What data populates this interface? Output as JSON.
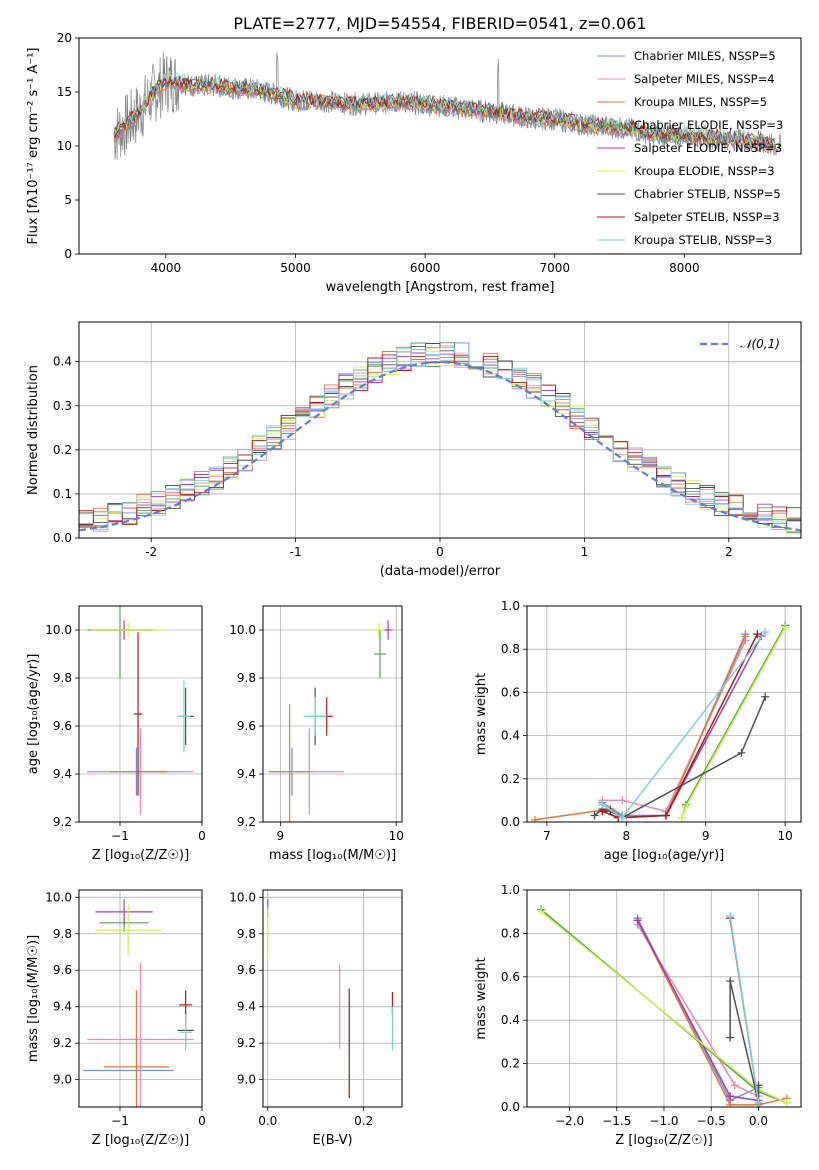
{
  "figure_title": "PLATE=2777, MJD=54554, FIBERID=0541, z=0.061",
  "colors": {
    "chab_miles": "#6d8fd6",
    "salp_miles": "#e889b9",
    "krou_miles": "#e07a32",
    "chab_elodie": "#5aa05a",
    "salp_elodie": "#a040b0",
    "krou_elodie": "#d2f04a",
    "chab_stelib": "#505050",
    "salp_stelib": "#b01818",
    "krou_stelib": "#80d0d8"
  },
  "chart_data": [
    {
      "id": "spectrum",
      "type": "line",
      "title": "PLATE=2777, MJD=54554, FIBERID=0541, z=0.061",
      "xlabel": "wavelength [Angstrom, rest frame]",
      "ylabel": "Flux [fλ10⁻¹⁷ erg cm⁻² s⁻¹ A⁻¹]",
      "xlim": [
        3330,
        8900
      ],
      "ylim": [
        0,
        20
      ],
      "xticks": [
        4000,
        5000,
        6000,
        7000,
        8000
      ],
      "yticks": [
        0,
        5,
        10,
        15,
        20
      ],
      "grid": false,
      "legend_position": "top-right",
      "legend": [
        "Chabrier MILES, NSSP=5",
        "Salpeter MILES, NSSP=4",
        "Kroupa MILES, NSSP=5",
        "Chabrier ELODIE, NSSP=3",
        "Salpeter ELODIE, NSSP=3",
        "Kroupa ELODIE, NSSP=3",
        "Chabrier STELIB, NSSP=5",
        "Salpeter STELIB, NSSP=3",
        "Kroupa STELIB, NSSP=3"
      ],
      "legend_colors": [
        "chab_miles",
        "salp_miles",
        "krou_miles",
        "chab_elodie",
        "salp_elodie",
        "krou_elodie",
        "chab_stelib",
        "salp_stelib",
        "krou_stelib"
      ],
      "continuum": [
        [
          3600,
          11.0
        ],
        [
          3700,
          12.0
        ],
        [
          3800,
          13.2
        ],
        [
          3900,
          14.8
        ],
        [
          4000,
          16.0
        ],
        [
          4100,
          15.9
        ],
        [
          4200,
          15.6
        ],
        [
          4300,
          15.6
        ],
        [
          4400,
          15.6
        ],
        [
          4500,
          15.4
        ],
        [
          4700,
          15.2
        ],
        [
          4900,
          14.6
        ],
        [
          5000,
          14.2
        ],
        [
          5200,
          14.2
        ],
        [
          5400,
          13.9
        ],
        [
          5600,
          13.9
        ],
        [
          5800,
          14.1
        ],
        [
          6000,
          13.9
        ],
        [
          6200,
          13.6
        ],
        [
          6400,
          13.3
        ],
        [
          6600,
          13.0
        ],
        [
          6800,
          12.6
        ],
        [
          7000,
          12.5
        ],
        [
          7200,
          12.0
        ],
        [
          7400,
          11.8
        ],
        [
          7600,
          11.5
        ],
        [
          7800,
          11.0
        ],
        [
          8000,
          11.0
        ],
        [
          8200,
          10.8
        ],
        [
          8400,
          10.6
        ],
        [
          8600,
          10.3
        ],
        [
          8700,
          10.0
        ]
      ]
    },
    {
      "id": "residuals",
      "type": "step",
      "xlabel": "(data-model)/error",
      "ylabel": "Normed distribution",
      "xlim": [
        -2.5,
        2.5
      ],
      "ylim": [
        0,
        0.49
      ],
      "xticks": [
        -2,
        -1,
        0,
        1,
        2
      ],
      "yticks": [
        0.0,
        0.1,
        0.2,
        0.3,
        0.4
      ],
      "grid": true,
      "legend": [
        "𝒩(0,1)"
      ],
      "legend_position": "top-right",
      "bin_width": 0.1
    },
    {
      "id": "age_vs_Z",
      "type": "errorbar",
      "xlabel": "Z [log₁₀(Z/Z☉)]",
      "ylabel": "age  [log₁₀(age/yr)]",
      "xlim": [
        -1.5,
        0.0
      ],
      "ylim": [
        9.2,
        10.1
      ],
      "xticks": [
        -1,
        0
      ],
      "xticklabels": [
        "−1",
        "0"
      ],
      "yticks": [
        9.2,
        9.4,
        9.6,
        9.8,
        10.0
      ],
      "grid": true,
      "points": [
        {
          "c": "chab_miles",
          "x": -0.8,
          "xe": 0.6,
          "y": 9.41,
          "ye": 0.1
        },
        {
          "c": "salp_miles",
          "x": -0.75,
          "xe": 0.65,
          "y": 9.41,
          "ye": 0.18
        },
        {
          "c": "krou_miles",
          "x": -0.78,
          "xe": 0.35,
          "y": 9.41,
          "ye": 0.1
        },
        {
          "c": "chab_elodie",
          "x": -1.0,
          "xe": 0.4,
          "y": 10.0,
          "ye": 0.2
        },
        {
          "c": "salp_elodie",
          "x": -0.95,
          "xe": 0.4,
          "y": 10.0,
          "ye": 0.04
        },
        {
          "c": "krou_elodie",
          "x": -0.9,
          "xe": 0.45,
          "y": 10.0,
          "ye": 0.03
        },
        {
          "c": "chab_stelib",
          "x": -0.2,
          "xe": 0.1,
          "y": 9.64,
          "ye": 0.12
        },
        {
          "c": "salp_stelib",
          "x": -0.78,
          "xe": 0.05,
          "y": 9.65,
          "ye": 0.34
        },
        {
          "c": "krou_stelib",
          "x": -0.22,
          "xe": 0.08,
          "y": 9.64,
          "ye": 0.15
        }
      ]
    },
    {
      "id": "age_vs_mass",
      "type": "errorbar",
      "xlabel": "mass [log₁₀(M/M☉)]",
      "ylabel": "",
      "xlim": [
        8.85,
        10.05
      ],
      "ylim": [
        9.2,
        10.1
      ],
      "xticks": [
        9,
        10
      ],
      "yticks": [
        9.2,
        9.4,
        9.6,
        9.8,
        10.0
      ],
      "grid": true,
      "points": [
        {
          "c": "chab_miles",
          "x": 9.1,
          "xe": 0.2,
          "y": 9.41,
          "ye": 0.1
        },
        {
          "c": "salp_miles",
          "x": 9.25,
          "xe": 0.3,
          "y": 9.41,
          "ye": 0.18
        },
        {
          "c": "krou_miles",
          "x": 9.08,
          "xe": 0.17,
          "y": 9.41,
          "ye": 0.28
        },
        {
          "c": "chab_elodie",
          "x": 9.86,
          "xe": 0.05,
          "y": 9.9,
          "ye": 0.1
        },
        {
          "c": "salp_elodie",
          "x": 9.93,
          "xe": 0.04,
          "y": 10.0,
          "ye": 0.04
        },
        {
          "c": "krou_elodie",
          "x": 9.85,
          "xe": 0.05,
          "y": 10.0,
          "ye": 0.03
        },
        {
          "c": "chab_stelib",
          "x": 9.3,
          "xe": 0.06,
          "y": 9.64,
          "ye": 0.12
        },
        {
          "c": "salp_stelib",
          "x": 9.4,
          "xe": 0.05,
          "y": 9.64,
          "ye": 0.08
        },
        {
          "c": "krou_stelib",
          "x": 9.3,
          "xe": 0.1,
          "y": 9.64,
          "ye": 0.08
        }
      ]
    },
    {
      "id": "massweight_vs_age",
      "type": "line",
      "xlabel": "age  [log₁₀(age/yr)]",
      "ylabel": "mass weight",
      "xlim": [
        6.75,
        10.2
      ],
      "ylim": [
        0.0,
        1.0
      ],
      "xticks": [
        7,
        8,
        9,
        10
      ],
      "yticks": [
        0.0,
        0.2,
        0.4,
        0.6,
        0.8,
        1.0
      ],
      "grid": true,
      "series": [
        {
          "c": "chab_miles",
          "x": [
            7.7,
            7.95,
            8.5,
            9.5
          ],
          "y": [
            0.09,
            0.03,
            0.03,
            0.87
          ]
        },
        {
          "c": "salp_miles",
          "x": [
            7.7,
            7.95,
            8.5,
            9.5
          ],
          "y": [
            0.1,
            0.1,
            0.05,
            0.84
          ]
        },
        {
          "c": "krou_miles",
          "x": [
            6.85,
            7.8,
            7.95,
            8.5,
            9.5
          ],
          "y": [
            0.01,
            0.06,
            0.02,
            0.03,
            0.86
          ]
        },
        {
          "c": "chab_elodie",
          "x": [
            8.7,
            8.75,
            10.0
          ],
          "y": [
            0.02,
            0.08,
            0.91
          ]
        },
        {
          "c": "salp_elodie",
          "x": [
            7.7,
            7.9,
            8.5,
            9.7
          ],
          "y": [
            0.05,
            0.02,
            0.03,
            0.86
          ]
        },
        {
          "c": "krou_elodie",
          "x": [
            8.7,
            8.75,
            10.0
          ],
          "y": [
            0.02,
            0.07,
            0.9
          ]
        },
        {
          "c": "chab_stelib",
          "x": [
            7.6,
            7.7,
            7.8,
            7.95,
            9.45,
            9.75
          ],
          "y": [
            0.03,
            0.06,
            0.05,
            0.02,
            0.32,
            0.58
          ]
        },
        {
          "c": "salp_stelib",
          "x": [
            7.7,
            7.9,
            8.5,
            9.65
          ],
          "y": [
            0.05,
            0.02,
            0.03,
            0.87
          ]
        },
        {
          "c": "krou_stelib",
          "x": [
            7.7,
            7.95,
            9.75
          ],
          "y": [
            0.08,
            0.02,
            0.88
          ]
        }
      ]
    },
    {
      "id": "mass_vs_Z",
      "type": "errorbar",
      "xlabel": "Z [log₁₀(Z/Z☉)]",
      "ylabel": "mass [log₁₀(M/M☉)]",
      "xlim": [
        -1.5,
        0.0
      ],
      "ylim": [
        8.85,
        10.04
      ],
      "xticks": [
        -1,
        0
      ],
      "xticklabels": [
        "−1",
        "0"
      ],
      "yticks": [
        9.0,
        9.2,
        9.4,
        9.6,
        9.8,
        10.0
      ],
      "grid": true,
      "points": [
        {
          "c": "chab_miles",
          "x": -0.9,
          "xe": 0.55,
          "y": 9.05,
          "ye": 0.0
        },
        {
          "c": "salp_miles",
          "x": -0.75,
          "xe": 0.65,
          "y": 9.22,
          "ye": 0.42
        },
        {
          "c": "krou_miles",
          "x": -0.8,
          "xe": 0.4,
          "y": 9.07,
          "ye": 0.42
        },
        {
          "c": "chab_elodie",
          "x": -0.95,
          "xe": 0.3,
          "y": 9.86,
          "ye": 0.05
        },
        {
          "c": "salp_elodie",
          "x": -0.95,
          "xe": 0.35,
          "y": 9.92,
          "ye": 0.07
        },
        {
          "c": "krou_elodie",
          "x": -0.9,
          "xe": 0.4,
          "y": 9.82,
          "ye": 0.14
        },
        {
          "c": "chab_stelib",
          "x": -0.2,
          "xe": 0.1,
          "y": 9.27,
          "ye": 0.1
        },
        {
          "c": "salp_stelib",
          "x": -0.2,
          "xe": 0.08,
          "y": 9.41,
          "ye": 0.08
        },
        {
          "c": "krou_stelib",
          "x": -0.2,
          "xe": 0.08,
          "y": 9.26,
          "ye": 0.1
        }
      ]
    },
    {
      "id": "mass_vs_ebv",
      "type": "errorbar",
      "xlabel": "E(B-V)",
      "ylabel": "",
      "xlim": [
        -0.01,
        0.28
      ],
      "ylim": [
        8.85,
        10.04
      ],
      "xticks": [
        0.0,
        0.2
      ],
      "xticklabels": [
        "0.0",
        "0.2"
      ],
      "yticks": [
        9.0,
        9.2,
        9.4,
        9.6,
        9.8,
        10.0
      ],
      "grid": true,
      "points": [
        {
          "c": "salp_miles",
          "x": 0.15,
          "xe": 0.0,
          "y": 9.4,
          "ye": 0.23
        },
        {
          "c": "krou_miles",
          "x": 0.17,
          "xe": 0.0,
          "y": 9.2,
          "ye": 0.3
        },
        {
          "c": "salp_elodie",
          "x": 0.0,
          "xe": 0.0,
          "y": 9.94,
          "ye": 0.05
        },
        {
          "c": "krou_elodie",
          "x": 0.0,
          "xe": 0.0,
          "y": 9.8,
          "ye": 0.14
        },
        {
          "c": "chab_stelib",
          "x": 0.17,
          "xe": 0.0,
          "y": 9.2,
          "ye": 0.3
        },
        {
          "c": "salp_stelib",
          "x": 0.26,
          "xe": 0.0,
          "y": 9.42,
          "ye": 0.06
        },
        {
          "c": "krou_stelib",
          "x": 0.26,
          "xe": 0.0,
          "y": 9.28,
          "ye": 0.12
        }
      ]
    },
    {
      "id": "massweight_vs_Z",
      "type": "line",
      "xlabel": "Z [log₁₀(Z/Z☉)]",
      "ylabel": "mass weight",
      "xlim": [
        -2.45,
        0.45
      ],
      "ylim": [
        0.0,
        1.0
      ],
      "xticks": [
        -2.0,
        -1.5,
        -1.0,
        -0.5,
        0.0
      ],
      "xticklabels": [
        "−2.0",
        "−1.5",
        "−1.0",
        "−0.5",
        "0.0"
      ],
      "yticks": [
        0.0,
        0.2,
        0.4,
        0.6,
        0.8,
        1.0
      ],
      "grid": true,
      "series": [
        {
          "c": "chab_miles",
          "x": [
            -1.28,
            -0.3,
            -0.3,
            0.0
          ],
          "y": [
            0.87,
            0.03,
            0.03,
            0.09
          ]
        },
        {
          "c": "salp_miles",
          "x": [
            -1.28,
            -0.25,
            0.0
          ],
          "y": [
            0.84,
            0.1,
            0.05
          ]
        },
        {
          "c": "krou_miles",
          "x": [
            -1.28,
            -0.3,
            0.0,
            0.3
          ],
          "y": [
            0.86,
            0.01,
            0.01,
            0.04
          ]
        },
        {
          "c": "chab_elodie",
          "x": [
            -2.3,
            0.0,
            0.3
          ],
          "y": [
            0.91,
            0.07,
            0.02
          ]
        },
        {
          "c": "salp_elodie",
          "x": [
            -1.28,
            -0.3,
            0.0
          ],
          "y": [
            0.86,
            0.05,
            0.03
          ]
        },
        {
          "c": "krou_elodie",
          "x": [
            -2.3,
            0.0,
            0.3
          ],
          "y": [
            0.9,
            0.08,
            0.02
          ]
        },
        {
          "c": "chab_stelib",
          "x": [
            -0.3,
            -0.3,
            0.0,
            0.0
          ],
          "y": [
            0.32,
            0.58,
            0.02,
            0.1
          ]
        },
        {
          "c": "salp_stelib",
          "x": [
            -0.3,
            0.0
          ],
          "y": [
            0.87,
            0.02
          ]
        },
        {
          "c": "krou_stelib",
          "x": [
            -0.3,
            0.0
          ],
          "y": [
            0.88,
            0.02
          ]
        }
      ]
    }
  ]
}
